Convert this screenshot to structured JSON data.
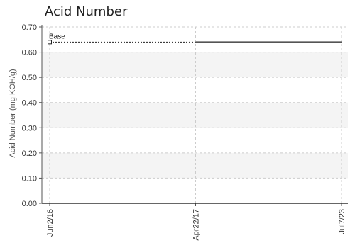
{
  "chart_data": {
    "type": "line",
    "title": "Acid Number",
    "ylabel": "Acid Number (mg KOH/g)",
    "xlabel": "",
    "ylim": [
      0,
      0.7
    ],
    "yticks": [
      "0.00",
      "0.10",
      "0.20",
      "0.30",
      "0.40",
      "0.50",
      "0.60",
      "0.70"
    ],
    "x_categories": [
      "Jun2/16",
      "Apr22/17",
      "Jul7/23"
    ],
    "grid": true,
    "legend": "none",
    "series": [
      {
        "points": [
          {
            "x": "Jun2/16",
            "y": 0.64
          },
          {
            "x": "Apr22/17",
            "y": 0.64
          },
          {
            "x": "Jul7/23",
            "y": 0.64
          }
        ],
        "color": "#555555"
      }
    ],
    "annotations": [
      {
        "label": "Base",
        "x": "Jun2/16",
        "y": 0.64
      }
    ],
    "band_color": "#f4f4f4",
    "grid_color": "#cccccc"
  }
}
